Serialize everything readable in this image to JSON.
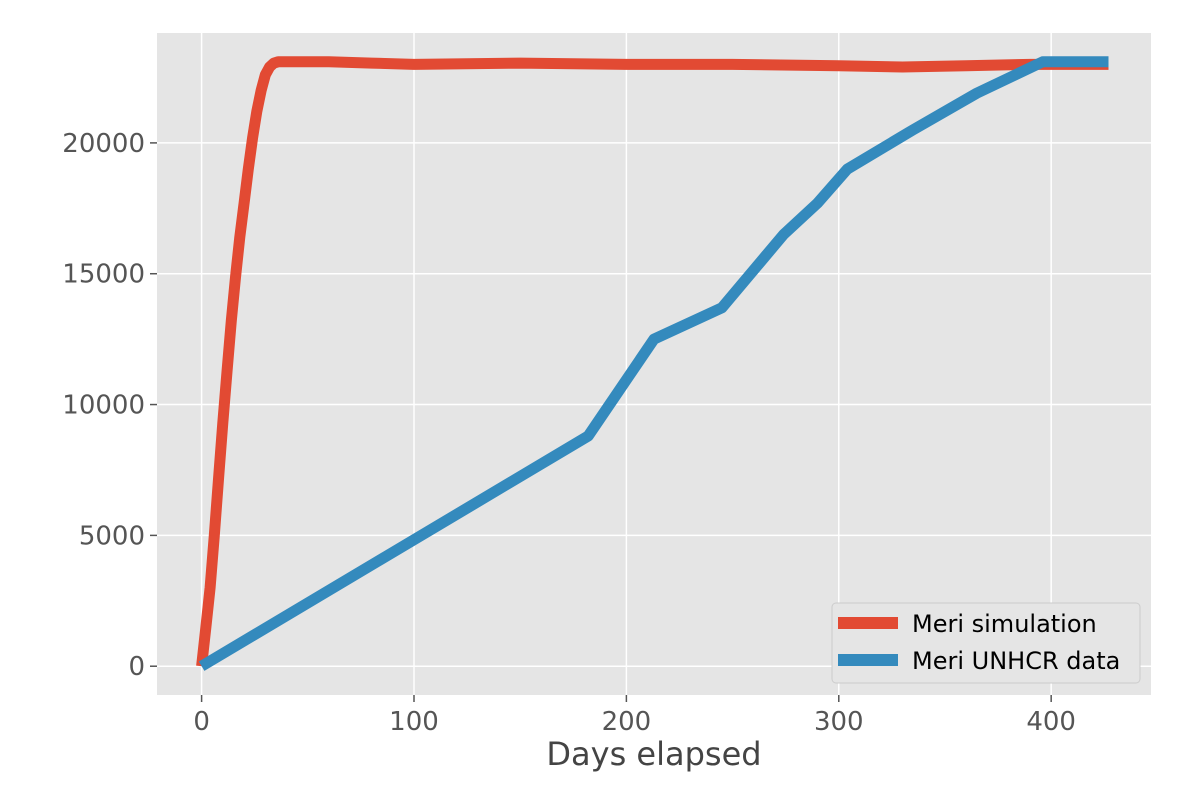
{
  "chart_data": {
    "type": "line",
    "title": "",
    "xlabel": "Days elapsed",
    "ylabel": "",
    "xlim": [
      -21,
      447
    ],
    "ylim": [
      -1100,
      24200
    ],
    "xticks": [
      0,
      100,
      200,
      300,
      400
    ],
    "xtick_labels": [
      "0",
      "100",
      "200",
      "300",
      "400"
    ],
    "yticks": [
      0,
      5000,
      10000,
      15000,
      20000
    ],
    "ytick_labels": [
      "0",
      "5000",
      "10000",
      "15000",
      "20000"
    ],
    "grid": true,
    "style": "ggplot",
    "background": "#e5e5e5",
    "legend_position": "lower-right",
    "series": [
      {
        "name": "Meri simulation",
        "color": "#e24a33",
        "x": [
          0,
          2,
          4,
          6,
          8,
          10,
          12,
          14,
          16,
          18,
          20,
          22,
          24,
          26,
          28,
          30,
          32,
          34,
          36,
          40,
          60,
          80,
          100,
          150,
          200,
          250,
          300,
          330,
          360,
          390,
          427
        ],
        "y": [
          0,
          1500,
          3000,
          5000,
          7200,
          9300,
          11300,
          13200,
          14900,
          16400,
          17700,
          19000,
          20200,
          21200,
          22000,
          22600,
          22900,
          23050,
          23100,
          23100,
          23100,
          23050,
          23000,
          23050,
          23000,
          23000,
          22950,
          22900,
          22950,
          23000,
          23000
        ]
      },
      {
        "name": "Meri UNHCR data",
        "color": "#348abd",
        "x": [
          0,
          182,
          213,
          245,
          274,
          290,
          304,
          335,
          365,
          396,
          427
        ],
        "y": [
          0,
          8800,
          12500,
          13700,
          16500,
          17700,
          19000,
          20500,
          21900,
          23100,
          23100
        ]
      }
    ]
  }
}
